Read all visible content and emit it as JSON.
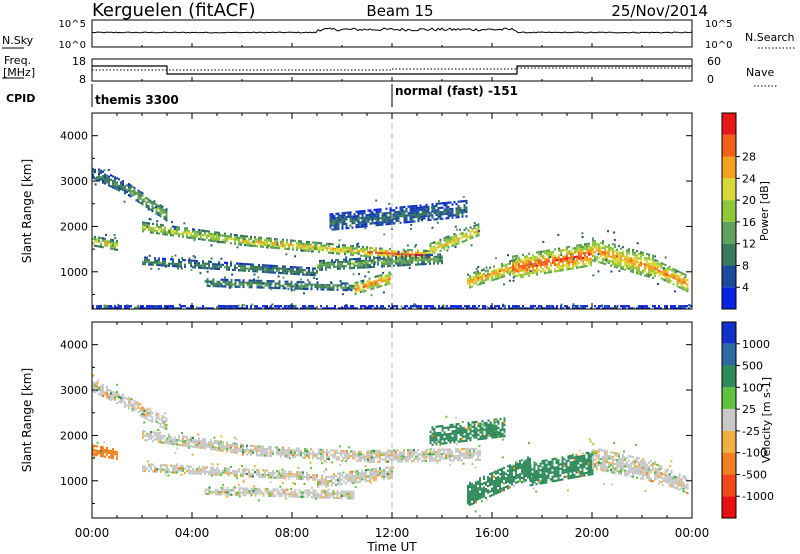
{
  "header": {
    "station": "Kerguelen (fitACF)",
    "beam": "Beam 15",
    "date": "25/Nov/2014"
  },
  "status_panels": {
    "nsky_label": "N.Sky",
    "nsearch_label": "N.Search",
    "freq_label_1": "Freq.",
    "freq_label_2": "[MHz]",
    "nave_label": "Nave",
    "cpid_label": "CPID",
    "left_ticks_top": [
      "10^5",
      "10^0"
    ],
    "right_ticks_top": [
      "10^5",
      "10^0"
    ],
    "left_ticks_freq": [
      "18",
      "8"
    ],
    "right_ticks_nave": [
      "60",
      "0"
    ],
    "cpid_segments": [
      {
        "start_hour": 0,
        "label": "themis 3300"
      },
      {
        "start_hour": 12,
        "label": "normal (fast) -151"
      }
    ]
  },
  "time_axis": {
    "label": "Time UT",
    "ticks": [
      "00:00",
      "04:00",
      "08:00",
      "12:00",
      "16:00",
      "20:00",
      "00:00"
    ],
    "range_hours": [
      0,
      24
    ]
  },
  "chart_data": [
    {
      "type": "heatmap",
      "name": "power",
      "ylabel": "Slant Range [km]",
      "ylim": [
        180,
        4500
      ],
      "yticks": [
        "1000",
        "2000",
        "3000",
        "4000"
      ],
      "colorbar_label": "Power [dB]",
      "colorbar_ticks": [
        "4",
        "8",
        "12",
        "16",
        "20",
        "24",
        "28"
      ],
      "colorbar_colors": [
        "#0a22e6",
        "#1a4a9a",
        "#3a7a5a",
        "#5fa05a",
        "#8ec83a",
        "#d8d83a",
        "#f2a020",
        "#f06018",
        "#e81818"
      ],
      "bands": [
        {
          "start": 0.0,
          "end": 1.5,
          "range_start": 3200,
          "range_end": 2800,
          "width": 280,
          "power": 10
        },
        {
          "start": 1.5,
          "end": 3.0,
          "range_start": 2800,
          "range_end": 2250,
          "width": 260,
          "power": 14
        },
        {
          "start": 2.0,
          "end": 6.0,
          "range_start": 2000,
          "range_end": 1700,
          "width": 220,
          "power": 20
        },
        {
          "start": 6.0,
          "end": 11.0,
          "range_start": 1700,
          "range_end": 1450,
          "width": 220,
          "power": 22
        },
        {
          "start": 11.0,
          "end": 13.5,
          "range_start": 1450,
          "range_end": 1380,
          "width": 200,
          "power": 28
        },
        {
          "start": 13.5,
          "end": 15.5,
          "range_start": 1500,
          "range_end": 1950,
          "width": 280,
          "power": 22
        },
        {
          "start": 2.0,
          "end": 9.0,
          "range_start": 1250,
          "range_end": 1000,
          "width": 180,
          "power": 10
        },
        {
          "start": 4.5,
          "end": 10.5,
          "range_start": 780,
          "range_end": 680,
          "width": 160,
          "power": 12
        },
        {
          "start": 10.5,
          "end": 12.0,
          "range_start": 650,
          "range_end": 900,
          "width": 260,
          "power": 26
        },
        {
          "start": 9.0,
          "end": 14.0,
          "range_start": 1150,
          "range_end": 1300,
          "width": 220,
          "power": 14
        },
        {
          "start": 15.0,
          "end": 17.0,
          "range_start": 800,
          "range_end": 1150,
          "width": 320,
          "power": 24
        },
        {
          "start": 16.8,
          "end": 20.0,
          "range_start": 1100,
          "range_end": 1400,
          "width": 520,
          "power": 28
        },
        {
          "start": 20.0,
          "end": 22.5,
          "range_start": 1500,
          "range_end": 1100,
          "width": 520,
          "power": 24
        },
        {
          "start": 22.5,
          "end": 23.8,
          "range_start": 1100,
          "range_end": 750,
          "width": 360,
          "power": 26
        },
        {
          "start": 9.5,
          "end": 15.0,
          "range_start": 2100,
          "range_end": 2400,
          "width": 380,
          "power": 8
        },
        {
          "start": 0.0,
          "end": 1.0,
          "range_start": 1700,
          "range_end": 1600,
          "width": 200,
          "power": 20
        },
        {
          "start": 0.0,
          "end": 24.0,
          "range_start": 230,
          "range_end": 230,
          "width": 70,
          "power": 3
        }
      ]
    },
    {
      "type": "heatmap",
      "name": "velocity",
      "ylabel": "Slant Range [km]",
      "ylim": [
        180,
        4500
      ],
      "yticks": [
        "1000",
        "2000",
        "3000",
        "4000"
      ],
      "colorbar_label": "Velocity [m s-1]",
      "colorbar_ticks": [
        "1000",
        "500",
        "100",
        "25",
        "-25",
        "-100",
        "-500",
        "-1000"
      ],
      "colorbar_colors": [
        "#1030c8",
        "#2a6aa0",
        "#2e8a5a",
        "#60c040",
        "#c8c8c8",
        "#f0b040",
        "#f08020",
        "#f04818",
        "#e81010"
      ],
      "bands": [
        {
          "start": 0.0,
          "end": 1.5,
          "range_start": 3100,
          "range_end": 2700,
          "width": 280,
          "velocity": 0
        },
        {
          "start": 1.5,
          "end": 3.0,
          "range_start": 2700,
          "range_end": 2250,
          "width": 260,
          "velocity": 0
        },
        {
          "start": 2.0,
          "end": 6.0,
          "range_start": 2000,
          "range_end": 1700,
          "width": 240,
          "velocity": 0
        },
        {
          "start": 6.0,
          "end": 11.0,
          "range_start": 1700,
          "range_end": 1550,
          "width": 200,
          "velocity": 0
        },
        {
          "start": 11.0,
          "end": 15.5,
          "range_start": 1550,
          "range_end": 1600,
          "width": 260,
          "velocity": 0
        },
        {
          "start": 2.0,
          "end": 9.0,
          "range_start": 1300,
          "range_end": 1100,
          "width": 180,
          "velocity": 0
        },
        {
          "start": 4.5,
          "end": 10.5,
          "range_start": 800,
          "range_end": 700,
          "width": 160,
          "velocity": 0
        },
        {
          "start": 9.0,
          "end": 12.0,
          "range_start": 1000,
          "range_end": 1200,
          "width": 260,
          "velocity": 0
        },
        {
          "start": 15.0,
          "end": 17.5,
          "range_start": 700,
          "range_end": 1300,
          "width": 520,
          "velocity": 300
        },
        {
          "start": 17.5,
          "end": 20.0,
          "range_start": 1150,
          "range_end": 1400,
          "width": 520,
          "velocity": 300
        },
        {
          "start": 20.0,
          "end": 22.5,
          "range_start": 1500,
          "range_end": 1200,
          "width": 480,
          "velocity": 0
        },
        {
          "start": 22.5,
          "end": 23.8,
          "range_start": 1200,
          "range_end": 900,
          "width": 380,
          "velocity": 0
        },
        {
          "start": 13.5,
          "end": 16.5,
          "range_start": 2000,
          "range_end": 2200,
          "width": 400,
          "velocity": 300
        },
        {
          "start": 0.0,
          "end": 1.0,
          "range_start": 1700,
          "range_end": 1600,
          "width": 200,
          "velocity": -300
        }
      ]
    }
  ]
}
